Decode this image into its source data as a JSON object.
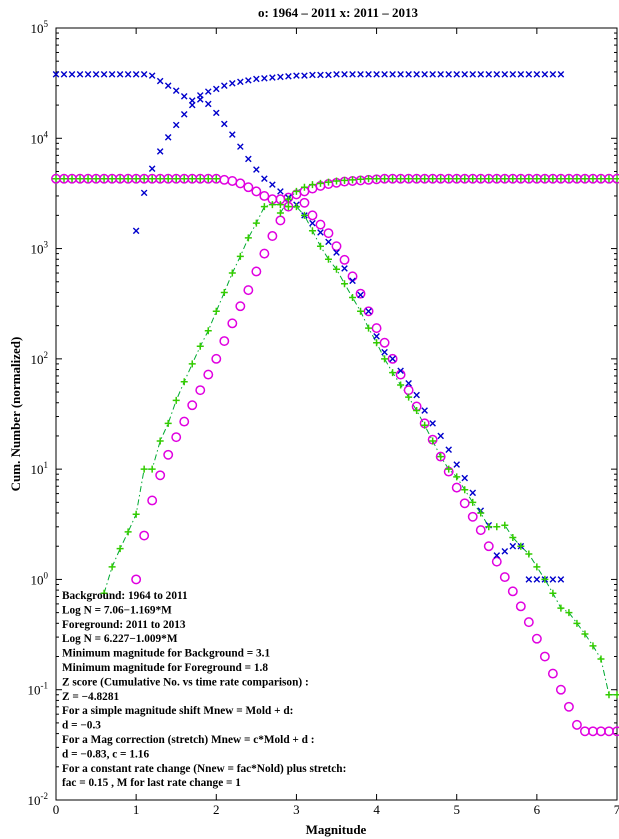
{
  "chart_data": {
    "type": "scatter",
    "title": "o: 1964 – 2011     x: 2011 – 2013",
    "xlabel": "Magnitude",
    "ylabel": "Cum. Number (normalized)",
    "xlim": [
      0,
      7
    ],
    "ylim": [
      0.01,
      100000
    ],
    "yscale": "log",
    "x_ticks": [
      0,
      1,
      2,
      3,
      4,
      5,
      6,
      7
    ],
    "y_ticks": [
      {
        "value": 0.01,
        "base": "10",
        "exp": "-2"
      },
      {
        "value": 0.1,
        "base": "10",
        "exp": "-1"
      },
      {
        "value": 1,
        "base": "10",
        "exp": "0"
      },
      {
        "value": 10,
        "base": "10",
        "exp": "1"
      },
      {
        "value": 100,
        "base": "10",
        "exp": "2"
      },
      {
        "value": 1000,
        "base": "10",
        "exp": "3"
      },
      {
        "value": 10000,
        "base": "10",
        "exp": "4"
      },
      {
        "value": 100000,
        "base": "10",
        "exp": "5"
      }
    ],
    "grid": false,
    "colors": {
      "circles": "#e000e0",
      "crosses": "#0000cc",
      "plus": "#33cc00",
      "dashline": "#00aa33"
    },
    "series": [
      {
        "marker": "circle",
        "x": [
          0.0,
          0.1,
          0.2,
          0.3,
          0.4,
          0.5,
          0.6,
          0.7,
          0.8,
          0.9,
          1.0,
          1.1,
          1.2,
          1.3,
          1.4,
          1.5,
          1.6,
          1.7,
          1.8,
          1.9,
          2.0,
          2.1,
          2.2,
          2.3,
          2.4,
          2.5,
          2.6,
          2.7,
          2.8,
          2.9,
          3.0,
          3.1,
          3.2,
          3.3,
          3.4,
          3.5,
          3.6,
          3.7,
          3.8,
          3.9,
          4.0,
          4.1,
          4.2,
          4.3,
          4.4,
          4.5,
          4.6,
          4.7,
          4.8,
          4.9,
          5.0,
          5.1,
          5.2,
          5.3,
          5.4,
          5.5,
          5.6,
          5.7,
          5.8,
          5.9,
          6.0,
          6.1,
          6.2,
          6.3,
          6.4,
          6.5,
          6.6,
          6.7,
          6.8,
          6.9,
          7.0
        ],
        "y": [
          4300,
          4300,
          4300,
          4300,
          4300,
          4300,
          4300,
          4300,
          4300,
          4300,
          1.0,
          2.5,
          5.2,
          8.8,
          13.5,
          19.5,
          27,
          38,
          52,
          72,
          100,
          145,
          210,
          300,
          420,
          620,
          900,
          1300,
          1800,
          2400,
          3100,
          2600,
          2000,
          1650,
          1380,
          1050,
          790,
          560,
          390,
          270,
          190,
          140,
          100,
          72,
          52,
          37,
          26,
          18.5,
          13,
          9.5,
          6.8,
          4.9,
          3.7,
          2.8,
          2.0,
          1.45,
          1.05,
          0.78,
          0.57,
          0.41,
          0.29,
          0.2,
          0.14,
          0.1,
          0.07,
          0.048,
          0.042,
          0.042,
          0.042,
          0.042,
          0.042
        ],
        "y_upper": [
          4300,
          4300,
          4300,
          4300,
          4300,
          4300,
          4300,
          4300,
          4300,
          4300,
          4300,
          4300,
          4300,
          4300,
          4300,
          4300,
          4300,
          4300,
          4300,
          4300,
          4300,
          4200,
          4100,
          3900,
          3600,
          3300,
          3000,
          2800,
          2800,
          2900,
          3100,
          3300,
          3500,
          3700,
          3850,
          3950,
          4050,
          4100,
          4150,
          4200,
          4250,
          4300,
          4300,
          4300,
          4300,
          4300,
          4300,
          4300,
          4300,
          4300,
          4300,
          4300,
          4300,
          4300,
          4300,
          4300,
          4300,
          4300,
          4300,
          4300,
          4300,
          4300,
          4300,
          4300,
          4300,
          4300,
          4300,
          4300,
          4300,
          4300,
          4300
        ]
      },
      {
        "marker": "x",
        "x": [
          0.0,
          0.1,
          0.2,
          0.3,
          0.4,
          0.5,
          0.6,
          0.7,
          0.8,
          0.9,
          1.0,
          1.1,
          1.2,
          1.3,
          1.4,
          1.5,
          1.6,
          1.7,
          1.8,
          1.9,
          2.0,
          2.1,
          2.2,
          2.3,
          2.4,
          2.5,
          2.6,
          2.7,
          2.8,
          2.9,
          3.0,
          3.1,
          3.2,
          3.3,
          3.4,
          3.5,
          3.6,
          3.7,
          3.8,
          3.9,
          4.0,
          4.1,
          4.2,
          4.3,
          4.4,
          4.5,
          4.6,
          4.7,
          4.8,
          4.9,
          5.0,
          5.1,
          5.2,
          5.3,
          5.4,
          5.5,
          5.6,
          5.7,
          5.8,
          5.9,
          6.0,
          6.1,
          6.2,
          6.3
        ],
        "y": [
          38000,
          38000,
          38000,
          38000,
          38000,
          38000,
          38000,
          38000,
          38000,
          38000,
          1450,
          3200,
          5300,
          7600,
          10200,
          13200,
          16500,
          20000,
          22500,
          20500,
          17000,
          13500,
          10800,
          8400,
          6500,
          5200,
          4300,
          3800,
          3300,
          2900,
          2500,
          2000,
          1700,
          1400,
          1150,
          920,
          660,
          510,
          380,
          270,
          160,
          115,
          100,
          78,
          60,
          47,
          34,
          26,
          20,
          15,
          11,
          8.3,
          6.1,
          4.2,
          3.1,
          1.65,
          1.8,
          2.0,
          2.0,
          1.0,
          1.0,
          1.0,
          1.0,
          1.0
        ],
        "y_upper": [
          38000,
          38000,
          38000,
          38000,
          38000,
          38000,
          38000,
          38000,
          38000,
          38000,
          38000,
          38000,
          37000,
          33000,
          30000,
          27000,
          24000,
          22000,
          24500,
          26500,
          28000,
          30000,
          31500,
          32500,
          33500,
          34500,
          35000,
          35500,
          36000,
          36500,
          37000,
          37000,
          37500,
          37500,
          37500,
          38000,
          38000,
          38000,
          38000,
          38000,
          38000,
          38000,
          38000,
          38000,
          38000,
          38000,
          38000,
          38000,
          38000,
          38000,
          38000,
          38000,
          38000,
          38000,
          38000,
          38000,
          38000,
          38000,
          38000,
          38000,
          38000,
          38000,
          38000,
          38000
        ]
      },
      {
        "marker": "plus",
        "x": [
          0.6,
          0.7,
          0.8,
          0.9,
          1.0,
          1.1,
          1.2,
          1.3,
          1.4,
          1.5,
          1.6,
          1.7,
          1.8,
          1.9,
          2.0,
          2.1,
          2.2,
          2.3,
          2.4,
          2.5,
          2.6,
          2.7,
          2.8,
          2.9,
          3.0,
          3.1,
          3.2,
          3.3,
          3.4,
          3.5,
          3.6,
          3.7,
          3.8,
          3.9,
          4.0,
          4.1,
          4.2,
          4.3,
          4.4,
          4.5,
          4.6,
          4.7,
          4.8,
          4.9,
          5.0,
          5.1,
          5.2,
          5.3,
          5.4,
          5.5,
          5.6,
          5.7,
          5.8,
          5.9,
          6.0,
          6.1,
          6.2,
          6.3,
          6.4,
          6.5,
          6.6,
          6.7,
          6.8,
          6.9,
          7.0
        ],
        "y": [
          0.75,
          1.3,
          1.9,
          2.7,
          3.9,
          10,
          10,
          18,
          26,
          42,
          62,
          90,
          130,
          180,
          270,
          400,
          600,
          850,
          1250,
          1700,
          2400,
          2500,
          2500,
          2400,
          2400,
          2000,
          1450,
          1050,
          800,
          650,
          480,
          360,
          270,
          190,
          140,
          100,
          75,
          58,
          45,
          34,
          25,
          18,
          13,
          10,
          8.5,
          6.5,
          5.0,
          4.0,
          3.0,
          3.0,
          3.1,
          2.4,
          2.0,
          1.7,
          1.3,
          1.0,
          0.75,
          0.55,
          0.5,
          0.4,
          0.32,
          0.25,
          0.19,
          0.09,
          0.09
        ],
        "y_upper": [
          null,
          null,
          null,
          null,
          null,
          null,
          null,
          null,
          null,
          null,
          null,
          null,
          null,
          null,
          null,
          null,
          null,
          null,
          null,
          null,
          null,
          null,
          2100,
          2800,
          3300,
          3600,
          3800,
          3900,
          4000,
          4100,
          4150,
          4200,
          4250,
          4300,
          4300,
          4300,
          4300,
          4300,
          4300,
          4300,
          4300,
          4300,
          4300,
          4300,
          4300,
          4300,
          4300,
          4300,
          4300,
          4300,
          4300,
          4300,
          4300,
          4300,
          4300,
          4300,
          4300,
          4300,
          4300,
          4300,
          4300,
          4300,
          4300,
          4300,
          4300
        ]
      }
    ],
    "annotations": [
      "Background: 1964 to 2011",
      "Log N = 7.06−1.169*M",
      "Foreground: 2011 to 2013",
      "Log N = 6.227−1.009*M",
      "Minimum magnitude for Background = 3.1",
      "Minimum magnitude for Foreground = 1.8",
      "Z score (Cumulative No. vs time rate comparison) :",
      "Z = −4.8281",
      "For a simple magnitude shift Mnew = Mold + d:",
      "d = −0.3",
      "For a Mag correction (stretch) Mnew = c*Mold + d :",
      "d = −0.83, c = 1.16",
      "For a constant rate change (Nnew = fac*Nold) plus stretch:",
      "fac = 0.15 , M for last rate change = 1"
    ]
  }
}
